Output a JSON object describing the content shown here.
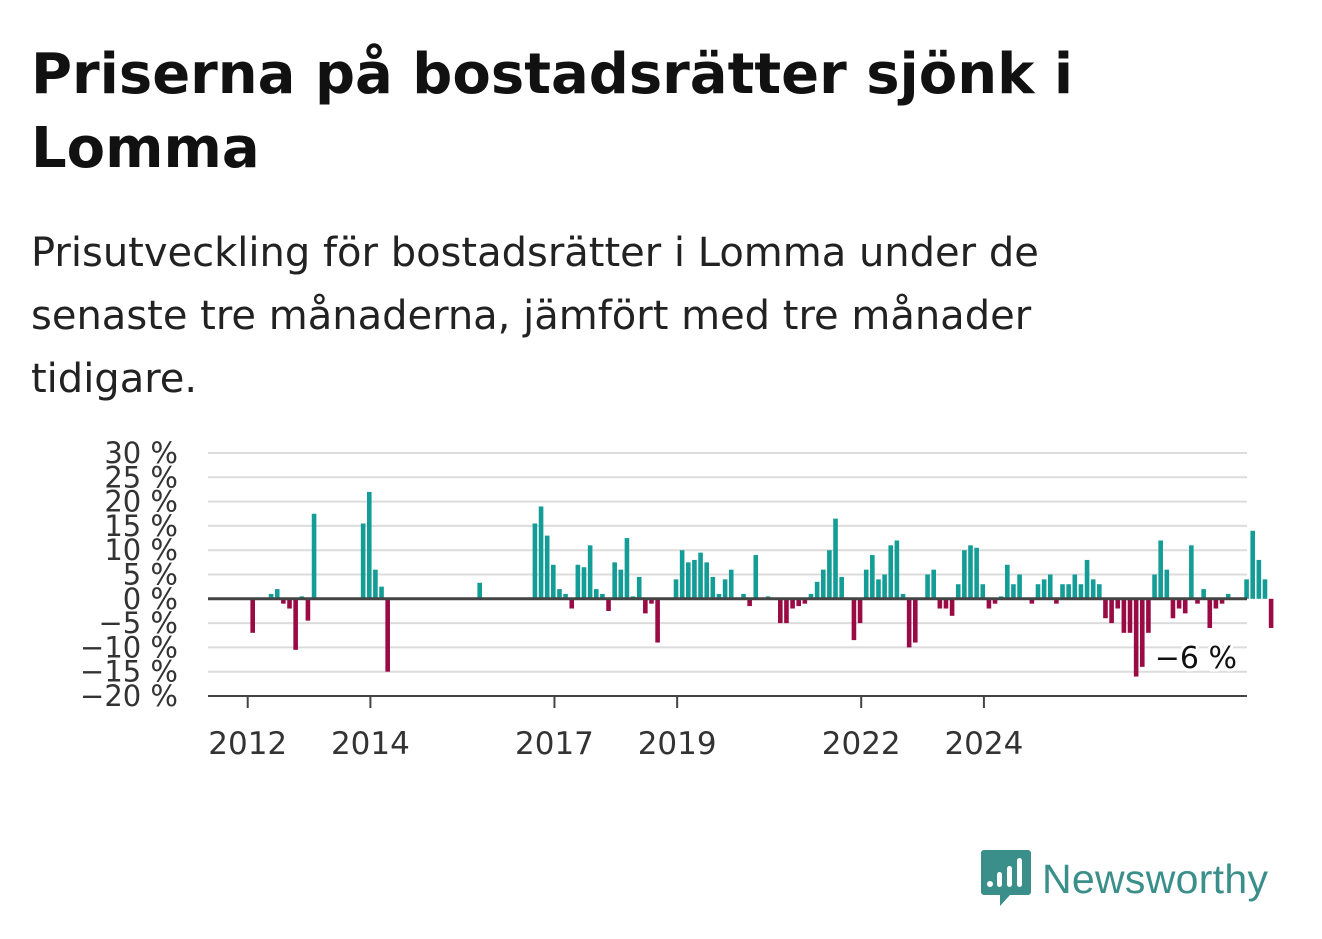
{
  "title": "Priserna på bostadsrätter sjönk i Lomma",
  "subtitle": "Prisutveckling för bostadsrätter i Lomma under de senaste tre månaderna, jämfört med tre månader tidigare.",
  "brand": {
    "name": "Newsworthy",
    "icon": "newsworthy-logo-icon",
    "color": "#3a8f8a"
  },
  "chart_data": {
    "type": "bar",
    "x_start": "2011-10",
    "frequency": "monthly",
    "values": [
      0,
      0,
      0,
      -7,
      0,
      0,
      1,
      2,
      -1,
      -2,
      -10.5,
      0.5,
      -4.5,
      17.5,
      0,
      0,
      0,
      0,
      0,
      0,
      0,
      15.5,
      22,
      6,
      2.5,
      -15,
      0,
      0,
      0,
      0,
      0,
      0,
      0,
      0,
      0,
      0,
      0,
      0,
      0,
      0,
      3.3,
      0,
      0,
      0,
      0,
      0,
      0,
      0,
      0,
      15.5,
      19,
      13,
      7,
      2,
      1,
      -2,
      7,
      6.5,
      11,
      2,
      1,
      -2.5,
      7.5,
      6,
      12.5,
      0.5,
      4.5,
      -3,
      -1,
      -9,
      0,
      0,
      4,
      10,
      7.5,
      8,
      9.5,
      7.5,
      4.5,
      1,
      4,
      6,
      0,
      1,
      -1.5,
      9,
      0,
      0.5,
      0,
      -5,
      -5,
      -2,
      -1.5,
      -1,
      1,
      3.5,
      6,
      10,
      16.5,
      4.5,
      0,
      -8.5,
      -5,
      6,
      9,
      4,
      5,
      11,
      12,
      1,
      -10,
      -9,
      0,
      5,
      6,
      -2,
      -2,
      -3.5,
      3,
      10,
      11,
      10.5,
      3,
      -2,
      -1,
      0.5,
      7,
      3,
      5,
      0,
      -1,
      3,
      4,
      5,
      -1,
      3,
      3,
      5,
      3,
      8,
      4,
      3,
      -4,
      -5,
      -2,
      -7,
      -7,
      -16,
      -14,
      -7,
      5,
      12,
      6,
      -4,
      -2,
      -3,
      11,
      -1,
      2,
      -6,
      -2,
      -1,
      1,
      0,
      0,
      4,
      14,
      8,
      4,
      -6
    ],
    "ylim": [
      -20,
      30
    ],
    "yticks": [
      30,
      25,
      20,
      15,
      10,
      5,
      0,
      -5,
      -10,
      -15,
      -20
    ],
    "ytick_labels": [
      "30 %",
      "25 %",
      "20 %",
      "15 %",
      "10 %",
      "5 %",
      "0 %",
      "−5 %",
      "−10 %",
      "−15 %",
      "−20 %"
    ],
    "xtick_labels": [
      "2012",
      "2014",
      "2017",
      "2019",
      "2022",
      "2024"
    ],
    "xtick_month_index": [
      3,
      23,
      53,
      73,
      103,
      123
    ],
    "last_value_label": "−6 %",
    "positive_color": "#139d96",
    "negative_color": "#9a0a45",
    "grid": true,
    "legend": "none"
  }
}
